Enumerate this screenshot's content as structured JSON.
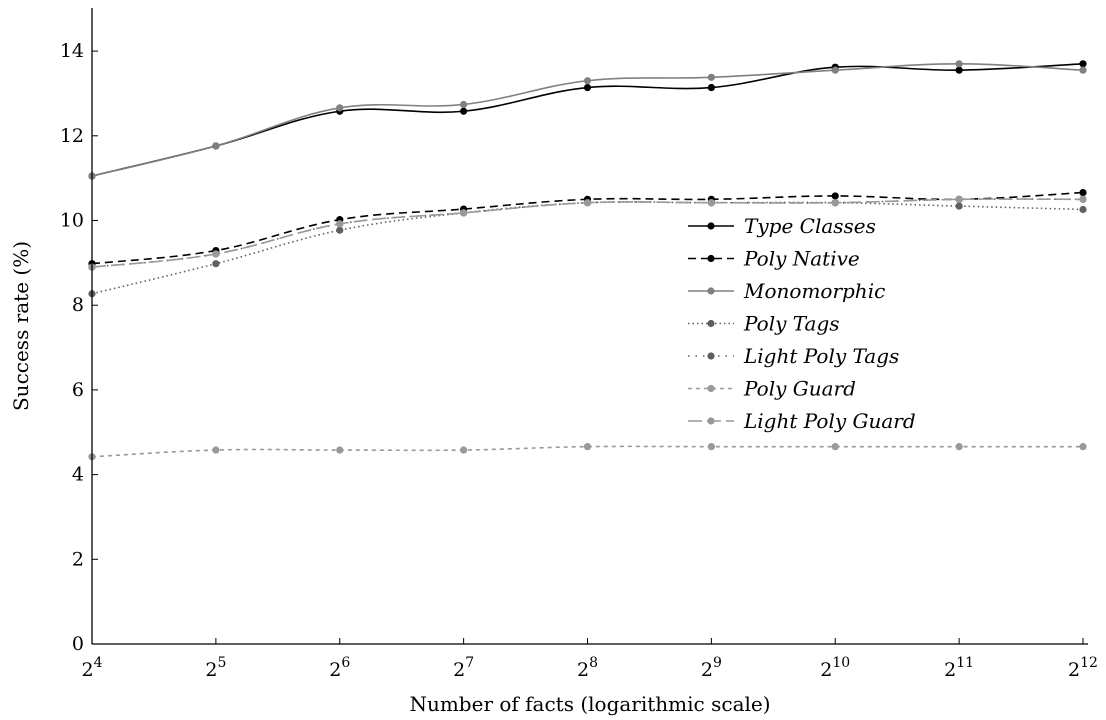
{
  "chart_data": {
    "type": "line",
    "xlabel": "Number of facts (logarithmic scale)",
    "ylabel": "Success rate (%)",
    "x_scale": "log2",
    "x_ticks": [
      {
        "base": "2",
        "exp": "4"
      },
      {
        "base": "2",
        "exp": "5"
      },
      {
        "base": "2",
        "exp": "6"
      },
      {
        "base": "2",
        "exp": "7"
      },
      {
        "base": "2",
        "exp": "8"
      },
      {
        "base": "2",
        "exp": "9"
      },
      {
        "base": "2",
        "exp": "10"
      },
      {
        "base": "2",
        "exp": "11"
      },
      {
        "base": "2",
        "exp": "12"
      }
    ],
    "x": [
      16,
      32,
      64,
      128,
      256,
      512,
      1024,
      2048,
      4096
    ],
    "xlim": [
      16,
      4096
    ],
    "ylim": [
      0,
      15
    ],
    "y_ticks": [
      "0",
      "2",
      "4",
      "6",
      "8",
      "10",
      "12",
      "14"
    ],
    "y_tick_values": [
      0,
      2,
      4,
      6,
      8,
      10,
      12,
      14
    ],
    "grid": false,
    "legend_position": "center-right",
    "series": [
      {
        "name": "Type Classes",
        "color": "#000000",
        "dash": "solid",
        "marker_color": "#000000",
        "values": [
          11.05,
          11.76,
          12.58,
          12.58,
          13.14,
          13.14,
          13.62,
          13.55,
          13.7
        ]
      },
      {
        "name": "Poly Native",
        "color": "#000000",
        "dash": "dashed",
        "marker_color": "#000000",
        "values": [
          8.98,
          9.29,
          10.02,
          10.27,
          10.5,
          10.5,
          10.58,
          10.5,
          10.66
        ]
      },
      {
        "name": "Monomorphic",
        "color": "#808080",
        "dash": "solid",
        "marker_color": "#808080",
        "values": [
          11.05,
          11.76,
          12.66,
          12.74,
          13.3,
          13.38,
          13.55,
          13.7,
          13.55
        ]
      },
      {
        "name": "Poly Tags",
        "color": "#606060",
        "dash": "dotted",
        "marker_color": "#606060",
        "values": [
          8.27,
          8.98,
          9.77,
          10.18,
          10.42,
          10.42,
          10.42,
          10.34,
          10.26
        ]
      },
      {
        "name": "Light Poly Tags",
        "color": "#606060",
        "dash": "dashdotdot",
        "marker_color": "#606060",
        "values": [
          8.9,
          9.21,
          9.92,
          10.18,
          10.42,
          10.42,
          10.42,
          10.5,
          10.5
        ]
      },
      {
        "name": "Poly Guard",
        "color": "#999999",
        "dash": "shortdash",
        "marker_color": "#999999",
        "values": [
          4.42,
          4.58,
          4.58,
          4.58,
          4.66,
          4.66,
          4.66,
          4.66,
          4.66
        ]
      },
      {
        "name": "Light Poly Guard",
        "color": "#999999",
        "dash": "longdash",
        "marker_color": "#999999",
        "values": [
          8.9,
          9.21,
          9.92,
          10.18,
          10.42,
          10.42,
          10.42,
          10.5,
          10.5
        ]
      }
    ]
  }
}
